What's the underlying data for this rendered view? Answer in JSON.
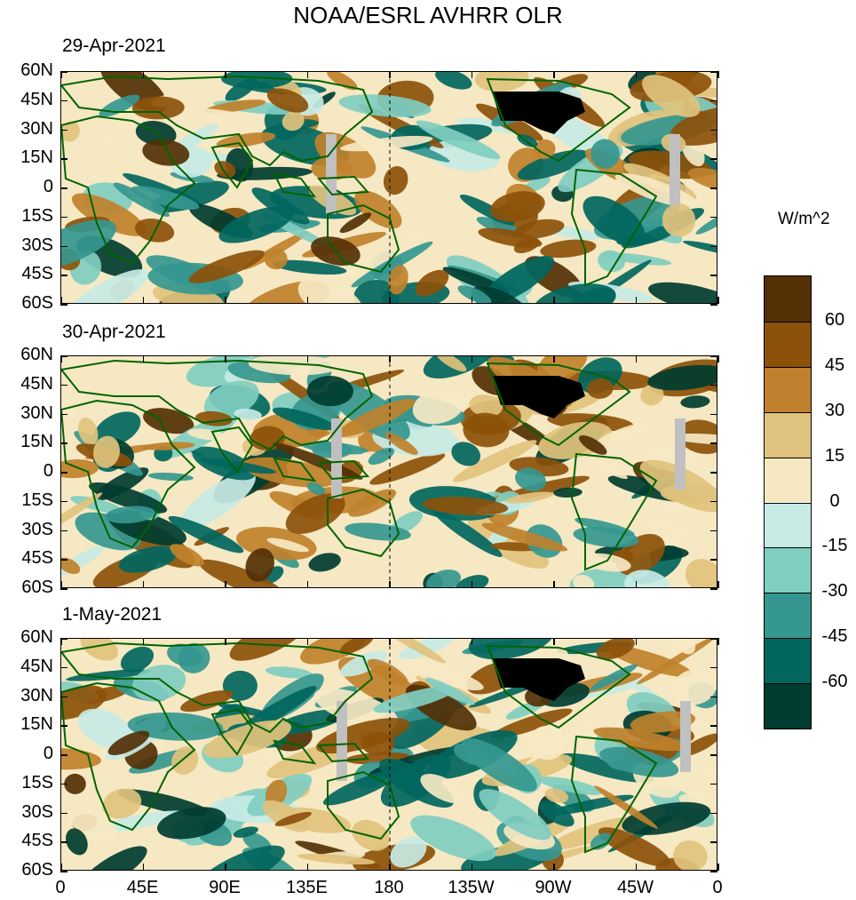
{
  "title": "NOAA/ESRL AVHRR OLR",
  "units": "W/m^2",
  "panels": [
    {
      "date": "29-Apr-2021"
    },
    {
      "date": "30-Apr-2021"
    },
    {
      "date": "1-May-2021"
    }
  ],
  "lat_labels": [
    "60N",
    "45N",
    "30N",
    "15N",
    "0",
    "15S",
    "30S",
    "45S",
    "60S"
  ],
  "lon_labels": [
    "0",
    "45E",
    "90E",
    "135E",
    "180",
    "135W",
    "90W",
    "45W",
    "0"
  ],
  "colorbar": {
    "levels": [
      "60",
      "45",
      "30",
      "15",
      "0",
      "-15",
      "-30",
      "-45",
      "-60"
    ],
    "colors": [
      "#543005",
      "#8c510a",
      "#bf812d",
      "#dfc27d",
      "#f6e8c3",
      "#c7eae5",
      "#80cdc1",
      "#35978f",
      "#01665e",
      "#003c30"
    ]
  },
  "colors": {
    "coastline": "#006400",
    "missing": "#c0c0c0",
    "usa": "#000000"
  }
}
